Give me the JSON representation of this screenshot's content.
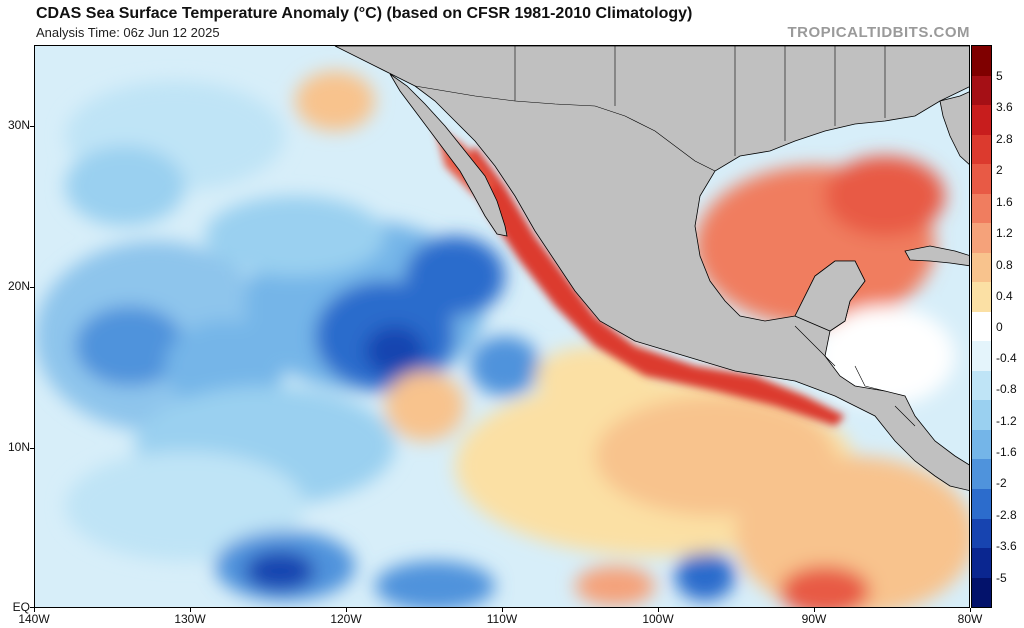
{
  "header": {
    "title": "CDAS Sea Surface Temperature Anomaly (°C) (based on CFSR 1981-2010 Climatology)",
    "analysis_time": "Analysis Time: 06z Jun 12 2025",
    "watermark": "TROPICALTIDBITS.COM"
  },
  "map": {
    "region": "Eastern North Pacific, Mexico, Central America and Gulf of Mexico",
    "land_color": "#c0c0c0",
    "lat_labels": [
      "30N",
      "20N",
      "10N",
      "EQ"
    ],
    "lon_labels": [
      "140W",
      "130W",
      "120W",
      "110W",
      "100W",
      "90W",
      "80W"
    ]
  },
  "colorbar": {
    "labels": [
      "5",
      "3.6",
      "2.8",
      "2",
      "1.6",
      "1.2",
      "0.8",
      "0.4",
      "0",
      "-0.4",
      "-0.8",
      "-1.2",
      "-1.6",
      "-2",
      "-2.8",
      "-3.6",
      "-5"
    ],
    "colors": [
      "#7f0000",
      "#a50f15",
      "#c81d1d",
      "#dc3a2e",
      "#e85a45",
      "#f07d5f",
      "#f5a27a",
      "#f8c38d",
      "#fbe0a4",
      "#ffffff",
      "#e4f4fb",
      "#bfe4f6",
      "#9ad0f0",
      "#74b5e8",
      "#4f93dc",
      "#2c6ccc",
      "#1744b0",
      "#0a2690",
      "#03126b"
    ]
  }
}
